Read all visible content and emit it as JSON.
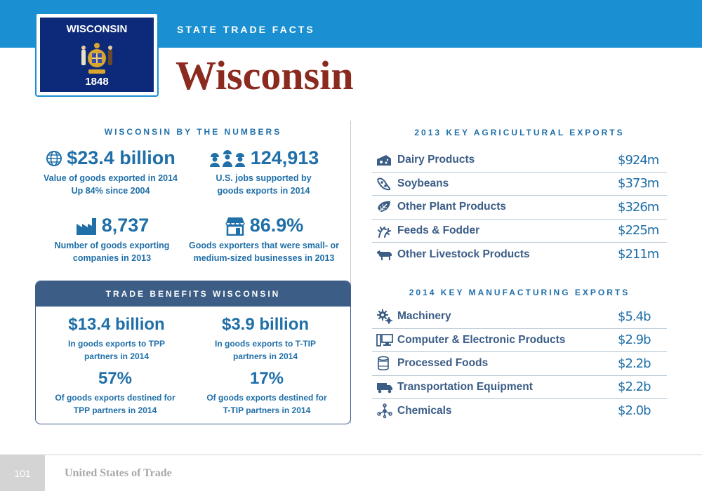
{
  "header": {
    "section_label": "STATE TRADE FACTS",
    "state_name": "Wisconsin",
    "flag": {
      "title": "WISCONSIN",
      "year": "1848"
    }
  },
  "numbers": {
    "heading": "WISCONSIN BY THE NUMBERS",
    "stats": [
      {
        "icon": "globe-icon",
        "value": "$23.4 billion",
        "caption_lines": [
          "Value of goods exported in 2014",
          "Up 84% since 2004"
        ]
      },
      {
        "icon": "workers-icon",
        "value": "124,913",
        "caption_lines": [
          "U.S. jobs supported by",
          "goods exports in 2014"
        ]
      },
      {
        "icon": "factory-icon",
        "value": "8,737",
        "caption_lines": [
          "Number of goods exporting",
          "companies in 2013"
        ]
      },
      {
        "icon": "storefront-icon",
        "value": "86.9%",
        "caption_lines": [
          "Goods exporters that were small- or",
          "medium-sized businesses in 2013"
        ]
      }
    ]
  },
  "benefits": {
    "heading": "TRADE BENEFITS WISCONSIN",
    "items": [
      {
        "value": "$13.4 billion",
        "caption_lines": [
          "In goods exports to TPP",
          "partners in 2014"
        ]
      },
      {
        "value": "$3.9 billion",
        "caption_lines": [
          "In goods exports to T-TIP",
          "partners in 2014"
        ]
      },
      {
        "value": "57%",
        "caption_lines": [
          "Of goods exports destined for",
          "TPP partners in 2014"
        ]
      },
      {
        "value": "17%",
        "caption_lines": [
          "Of goods exports destined for",
          "T-TIP partners in 2014"
        ]
      }
    ]
  },
  "agricultural": {
    "heading": "2013 KEY AGRICULTURAL EXPORTS",
    "rows": [
      {
        "icon": "cheese-icon",
        "name": "Dairy Products",
        "value": "$924m"
      },
      {
        "icon": "soybean-icon",
        "name": "Soybeans",
        "value": "$373m"
      },
      {
        "icon": "plant-icon",
        "name": "Other Plant Products",
        "value": "$326m"
      },
      {
        "icon": "grain-icon",
        "name": "Feeds & Fodder",
        "value": "$225m"
      },
      {
        "icon": "cow-icon",
        "name": "Other Livestock Products",
        "value": "$211m"
      }
    ]
  },
  "manufacturing": {
    "heading": "2014 KEY MANUFACTURING EXPORTS",
    "rows": [
      {
        "icon": "gears-icon",
        "name": "Machinery",
        "value": "$5.4b"
      },
      {
        "icon": "computer-icon",
        "name": "Computer & Electronic Products",
        "value": "$2.9b"
      },
      {
        "icon": "can-icon",
        "name": "Processed Foods",
        "value": "$2.2b"
      },
      {
        "icon": "truck-icon",
        "name": "Transportation Equipment",
        "value": "$2.2b"
      },
      {
        "icon": "molecule-icon",
        "name": "Chemicals",
        "value": "$2.0b"
      }
    ]
  },
  "footer": {
    "page_number": "101",
    "title": "United States of Trade"
  },
  "colors": {
    "banner": "#1a8fd1",
    "title_red": "#8b2a1f",
    "stat_blue": "#1f6fa8",
    "dark_blue": "#3b5d86"
  }
}
